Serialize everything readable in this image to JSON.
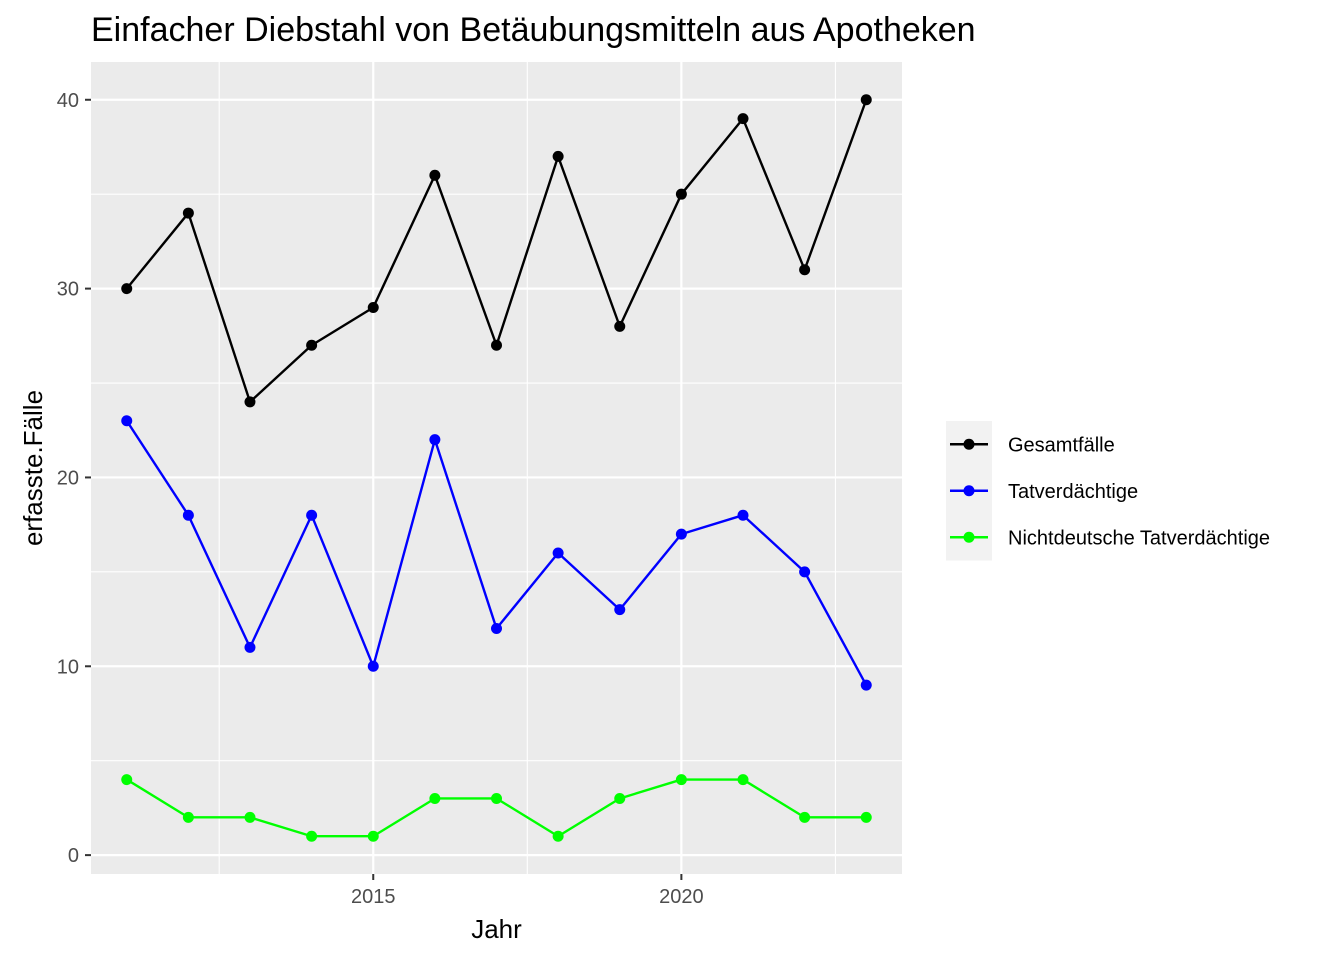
{
  "chart_data": {
    "type": "line",
    "title": "Einfacher Diebstahl von Betäubungsmitteln aus Apotheken",
    "xlabel": "Jahr",
    "ylabel": "erfasste.Fälle",
    "x": [
      2011,
      2012,
      2013,
      2014,
      2015,
      2016,
      2017,
      2018,
      2019,
      2020,
      2021,
      2022,
      2023
    ],
    "xlim": [
      2010.42,
      2023.58
    ],
    "ylim": [
      -1,
      42
    ],
    "x_ticks": [
      2015,
      2020
    ],
    "y_ticks": [
      0,
      10,
      20,
      30,
      40
    ],
    "grid": true,
    "background": "#ebebeb",
    "legend_position": "right",
    "series": [
      {
        "name": "Gesamtfälle",
        "color": "#000000",
        "values": [
          30,
          34,
          24,
          27,
          29,
          36,
          27,
          37,
          28,
          35,
          39,
          31,
          40
        ]
      },
      {
        "name": "Tatverdächtige",
        "color": "#0000ff",
        "values": [
          23,
          18,
          11,
          18,
          10,
          22,
          12,
          16,
          13,
          17,
          18,
          15,
          9
        ]
      },
      {
        "name": "Nichtdeutsche Tatverdächtige",
        "color": "#00ff00",
        "values": [
          4,
          2,
          2,
          1,
          1,
          3,
          3,
          1,
          3,
          4,
          4,
          2,
          2
        ]
      }
    ]
  }
}
